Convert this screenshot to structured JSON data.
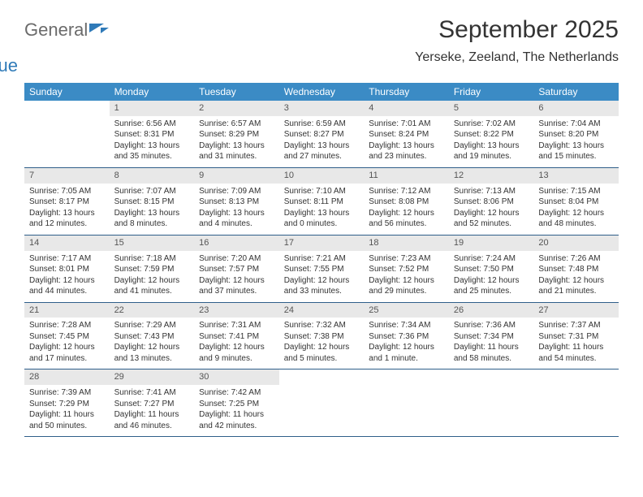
{
  "brand": {
    "part1": "General",
    "part2": "Blue"
  },
  "title": "September 2025",
  "location": "Yerseke, Zeeland, The Netherlands",
  "colors": {
    "header_bg": "#3b8bc5",
    "header_text": "#ffffff",
    "daynum_bg": "#e8e8e8",
    "border": "#2f5f8a",
    "brand_blue": "#2f7ab8",
    "brand_gray": "#6b6b6b"
  },
  "dayNames": [
    "Sunday",
    "Monday",
    "Tuesday",
    "Wednesday",
    "Thursday",
    "Friday",
    "Saturday"
  ],
  "weeks": [
    [
      {
        "empty": true
      },
      {
        "num": "1",
        "sunrise": "Sunrise: 6:56 AM",
        "sunset": "Sunset: 8:31 PM",
        "daylight": "Daylight: 13 hours and 35 minutes."
      },
      {
        "num": "2",
        "sunrise": "Sunrise: 6:57 AM",
        "sunset": "Sunset: 8:29 PM",
        "daylight": "Daylight: 13 hours and 31 minutes."
      },
      {
        "num": "3",
        "sunrise": "Sunrise: 6:59 AM",
        "sunset": "Sunset: 8:27 PM",
        "daylight": "Daylight: 13 hours and 27 minutes."
      },
      {
        "num": "4",
        "sunrise": "Sunrise: 7:01 AM",
        "sunset": "Sunset: 8:24 PM",
        "daylight": "Daylight: 13 hours and 23 minutes."
      },
      {
        "num": "5",
        "sunrise": "Sunrise: 7:02 AM",
        "sunset": "Sunset: 8:22 PM",
        "daylight": "Daylight: 13 hours and 19 minutes."
      },
      {
        "num": "6",
        "sunrise": "Sunrise: 7:04 AM",
        "sunset": "Sunset: 8:20 PM",
        "daylight": "Daylight: 13 hours and 15 minutes."
      }
    ],
    [
      {
        "num": "7",
        "sunrise": "Sunrise: 7:05 AM",
        "sunset": "Sunset: 8:17 PM",
        "daylight": "Daylight: 13 hours and 12 minutes."
      },
      {
        "num": "8",
        "sunrise": "Sunrise: 7:07 AM",
        "sunset": "Sunset: 8:15 PM",
        "daylight": "Daylight: 13 hours and 8 minutes."
      },
      {
        "num": "9",
        "sunrise": "Sunrise: 7:09 AM",
        "sunset": "Sunset: 8:13 PM",
        "daylight": "Daylight: 13 hours and 4 minutes."
      },
      {
        "num": "10",
        "sunrise": "Sunrise: 7:10 AM",
        "sunset": "Sunset: 8:11 PM",
        "daylight": "Daylight: 13 hours and 0 minutes."
      },
      {
        "num": "11",
        "sunrise": "Sunrise: 7:12 AM",
        "sunset": "Sunset: 8:08 PM",
        "daylight": "Daylight: 12 hours and 56 minutes."
      },
      {
        "num": "12",
        "sunrise": "Sunrise: 7:13 AM",
        "sunset": "Sunset: 8:06 PM",
        "daylight": "Daylight: 12 hours and 52 minutes."
      },
      {
        "num": "13",
        "sunrise": "Sunrise: 7:15 AM",
        "sunset": "Sunset: 8:04 PM",
        "daylight": "Daylight: 12 hours and 48 minutes."
      }
    ],
    [
      {
        "num": "14",
        "sunrise": "Sunrise: 7:17 AM",
        "sunset": "Sunset: 8:01 PM",
        "daylight": "Daylight: 12 hours and 44 minutes."
      },
      {
        "num": "15",
        "sunrise": "Sunrise: 7:18 AM",
        "sunset": "Sunset: 7:59 PM",
        "daylight": "Daylight: 12 hours and 41 minutes."
      },
      {
        "num": "16",
        "sunrise": "Sunrise: 7:20 AM",
        "sunset": "Sunset: 7:57 PM",
        "daylight": "Daylight: 12 hours and 37 minutes."
      },
      {
        "num": "17",
        "sunrise": "Sunrise: 7:21 AM",
        "sunset": "Sunset: 7:55 PM",
        "daylight": "Daylight: 12 hours and 33 minutes."
      },
      {
        "num": "18",
        "sunrise": "Sunrise: 7:23 AM",
        "sunset": "Sunset: 7:52 PM",
        "daylight": "Daylight: 12 hours and 29 minutes."
      },
      {
        "num": "19",
        "sunrise": "Sunrise: 7:24 AM",
        "sunset": "Sunset: 7:50 PM",
        "daylight": "Daylight: 12 hours and 25 minutes."
      },
      {
        "num": "20",
        "sunrise": "Sunrise: 7:26 AM",
        "sunset": "Sunset: 7:48 PM",
        "daylight": "Daylight: 12 hours and 21 minutes."
      }
    ],
    [
      {
        "num": "21",
        "sunrise": "Sunrise: 7:28 AM",
        "sunset": "Sunset: 7:45 PM",
        "daylight": "Daylight: 12 hours and 17 minutes."
      },
      {
        "num": "22",
        "sunrise": "Sunrise: 7:29 AM",
        "sunset": "Sunset: 7:43 PM",
        "daylight": "Daylight: 12 hours and 13 minutes."
      },
      {
        "num": "23",
        "sunrise": "Sunrise: 7:31 AM",
        "sunset": "Sunset: 7:41 PM",
        "daylight": "Daylight: 12 hours and 9 minutes."
      },
      {
        "num": "24",
        "sunrise": "Sunrise: 7:32 AM",
        "sunset": "Sunset: 7:38 PM",
        "daylight": "Daylight: 12 hours and 5 minutes."
      },
      {
        "num": "25",
        "sunrise": "Sunrise: 7:34 AM",
        "sunset": "Sunset: 7:36 PM",
        "daylight": "Daylight: 12 hours and 1 minute."
      },
      {
        "num": "26",
        "sunrise": "Sunrise: 7:36 AM",
        "sunset": "Sunset: 7:34 PM",
        "daylight": "Daylight: 11 hours and 58 minutes."
      },
      {
        "num": "27",
        "sunrise": "Sunrise: 7:37 AM",
        "sunset": "Sunset: 7:31 PM",
        "daylight": "Daylight: 11 hours and 54 minutes."
      }
    ],
    [
      {
        "num": "28",
        "sunrise": "Sunrise: 7:39 AM",
        "sunset": "Sunset: 7:29 PM",
        "daylight": "Daylight: 11 hours and 50 minutes."
      },
      {
        "num": "29",
        "sunrise": "Sunrise: 7:41 AM",
        "sunset": "Sunset: 7:27 PM",
        "daylight": "Daylight: 11 hours and 46 minutes."
      },
      {
        "num": "30",
        "sunrise": "Sunrise: 7:42 AM",
        "sunset": "Sunset: 7:25 PM",
        "daylight": "Daylight: 11 hours and 42 minutes."
      },
      {
        "empty": true
      },
      {
        "empty": true
      },
      {
        "empty": true
      },
      {
        "empty": true
      }
    ]
  ]
}
